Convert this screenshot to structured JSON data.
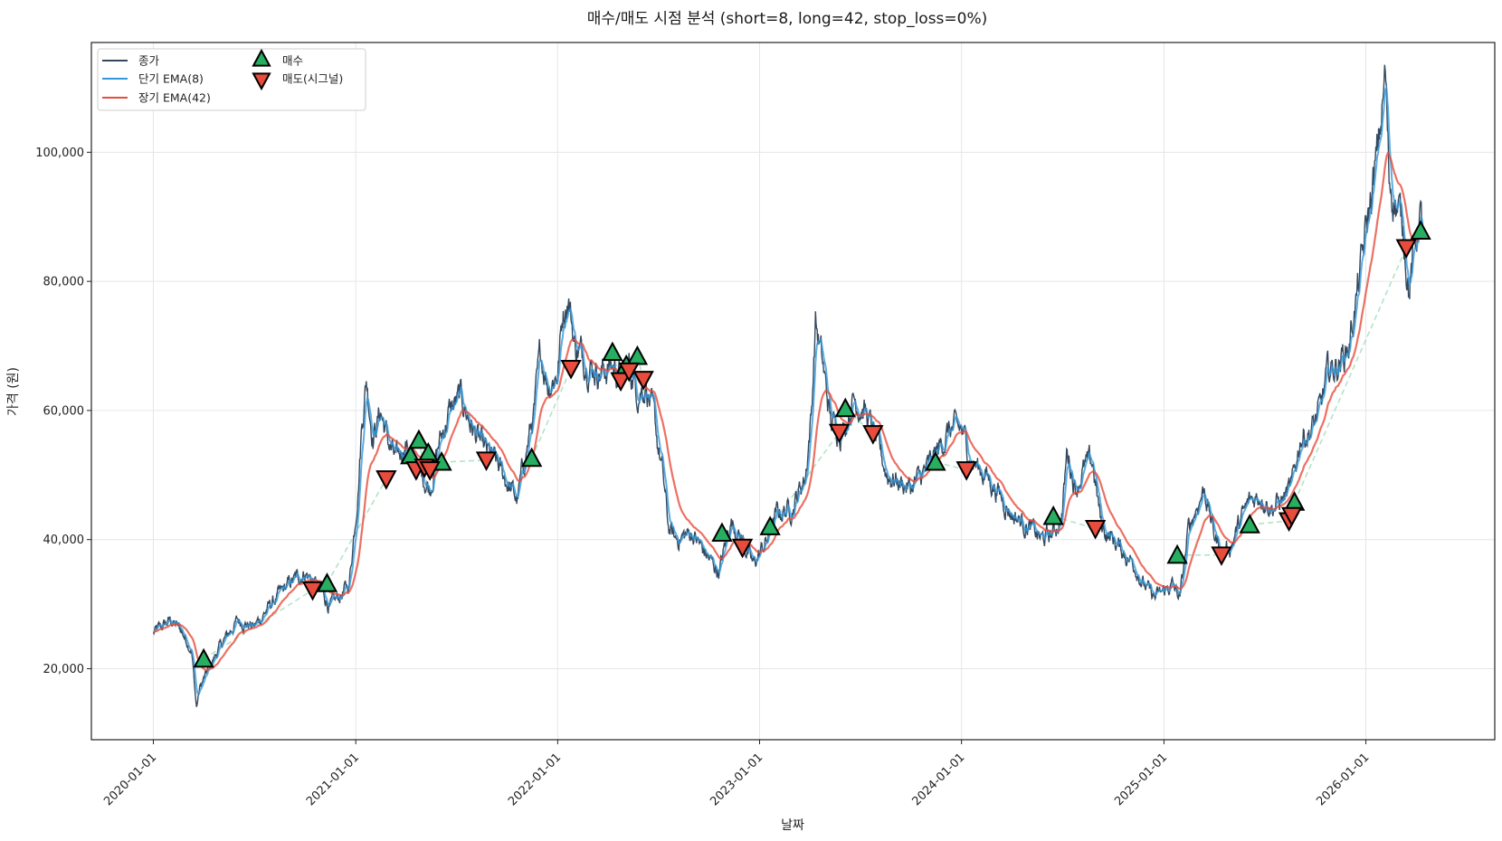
{
  "chart_data": {
    "type": "line",
    "title": "매수/매도 시점 분석 (short=8, long=42, stop_loss=0%)",
    "xlabel": "날짜",
    "ylabel": "가격 (원)",
    "xlim": [
      "2019-09-11",
      "2026-08-22"
    ],
    "ylim": [
      9000,
      117000
    ],
    "x_ticks": [
      "2020-01-01",
      "2021-01-01",
      "2022-01-01",
      "2023-01-01",
      "2024-01-01",
      "2025-01-01",
      "2026-01-01"
    ],
    "y_ticks": [
      20000,
      40000,
      60000,
      80000,
      100000
    ],
    "y_tick_labels": [
      "20,000",
      "40,000",
      "60,000",
      "80,000",
      "100,000"
    ],
    "grid": true,
    "legend_position": "top-left",
    "legend": [
      {
        "key": "close",
        "label": "종가",
        "kind": "line",
        "color": "#34495e"
      },
      {
        "key": "ema_short",
        "label": "단기 EMA(8)",
        "kind": "line",
        "color": "#3498db"
      },
      {
        "key": "ema_long",
        "label": "장기 EMA(42)",
        "kind": "line",
        "color": "#e74c3c"
      },
      {
        "key": "buy",
        "label": "매수",
        "kind": "marker-up",
        "color": "#27ae60"
      },
      {
        "key": "sell",
        "label": "매도(시그널)",
        "kind": "marker-down",
        "color": "#e74c3c"
      }
    ],
    "close_anchors": [
      [
        "2020-01-01",
        25500
      ],
      [
        "2020-02-01",
        27500
      ],
      [
        "2020-02-20",
        26000
      ],
      [
        "2020-03-10",
        23000
      ],
      [
        "2020-03-19",
        14000
      ],
      [
        "2020-03-25",
        17000
      ],
      [
        "2020-04-10",
        20000
      ],
      [
        "2020-05-01",
        23500
      ],
      [
        "2020-06-01",
        27500
      ],
      [
        "2020-07-01",
        26500
      ],
      [
        "2020-08-01",
        30000
      ],
      [
        "2020-09-01",
        33000
      ],
      [
        "2020-10-01",
        35000
      ],
      [
        "2020-11-01",
        32000
      ],
      [
        "2020-11-15",
        29500
      ],
      [
        "2020-12-01",
        31000
      ],
      [
        "2020-12-20",
        33000
      ],
      [
        "2021-01-05",
        48000
      ],
      [
        "2021-01-12",
        58000
      ],
      [
        "2021-01-20",
        65000
      ],
      [
        "2021-02-01",
        56000
      ],
      [
        "2021-02-15",
        60000
      ],
      [
        "2021-03-01",
        55000
      ],
      [
        "2021-03-15",
        52000
      ],
      [
        "2021-04-01",
        55000
      ],
      [
        "2021-04-15",
        52000
      ],
      [
        "2021-05-01",
        50000
      ],
      [
        "2021-05-15",
        48000
      ],
      [
        "2021-06-01",
        55000
      ],
      [
        "2021-06-20",
        60000
      ],
      [
        "2021-07-10",
        62000
      ],
      [
        "2021-08-01",
        57000
      ],
      [
        "2021-08-20",
        54000
      ],
      [
        "2021-09-10",
        52000
      ],
      [
        "2021-10-01",
        49000
      ],
      [
        "2021-10-20",
        46000
      ],
      [
        "2021-11-01",
        52000
      ],
      [
        "2021-11-20",
        60000
      ],
      [
        "2021-12-01",
        69000
      ],
      [
        "2021-12-15",
        64000
      ],
      [
        "2022-01-01",
        66000
      ],
      [
        "2022-01-10",
        75000
      ],
      [
        "2022-01-20",
        78000
      ],
      [
        "2022-02-01",
        70000
      ],
      [
        "2022-03-01",
        67000
      ],
      [
        "2022-03-20",
        66000
      ],
      [
        "2022-04-10",
        67000
      ],
      [
        "2022-04-25",
        65000
      ],
      [
        "2022-05-10",
        67000
      ],
      [
        "2022-05-25",
        63000
      ],
      [
        "2022-06-10",
        64000
      ],
      [
        "2022-06-25",
        58000
      ],
      [
        "2022-07-10",
        50000
      ],
      [
        "2022-07-20",
        42000
      ],
      [
        "2022-08-01",
        40000
      ],
      [
        "2022-09-01",
        41000
      ],
      [
        "2022-10-01",
        37000
      ],
      [
        "2022-10-20",
        35000
      ],
      [
        "2022-11-10",
        43000
      ],
      [
        "2022-12-01",
        40000
      ],
      [
        "2022-12-20",
        36000
      ],
      [
        "2023-01-15",
        40000
      ],
      [
        "2023-02-01",
        44000
      ],
      [
        "2023-03-01",
        45000
      ],
      [
        "2023-03-25",
        50000
      ],
      [
        "2023-04-05",
        60000
      ],
      [
        "2023-04-12",
        74000
      ],
      [
        "2023-04-25",
        67000
      ],
      [
        "2023-05-10",
        58000
      ],
      [
        "2023-06-01",
        57000
      ],
      [
        "2023-06-20",
        62000
      ],
      [
        "2023-07-10",
        60000
      ],
      [
        "2023-08-01",
        55000
      ],
      [
        "2023-08-20",
        50000
      ],
      [
        "2023-09-10",
        49000
      ],
      [
        "2023-10-01",
        48000
      ],
      [
        "2023-11-01",
        51000
      ],
      [
        "2023-11-20",
        54000
      ],
      [
        "2023-12-10",
        57000
      ],
      [
        "2024-01-01",
        57000
      ],
      [
        "2024-01-20",
        52000
      ],
      [
        "2024-02-15",
        50000
      ],
      [
        "2024-03-10",
        47000
      ],
      [
        "2024-04-01",
        44000
      ],
      [
        "2024-05-01",
        42000
      ],
      [
        "2024-05-25",
        40000
      ],
      [
        "2024-06-15",
        41000
      ],
      [
        "2024-07-01",
        44000
      ],
      [
        "2024-07-10",
        54000
      ],
      [
        "2024-07-25",
        48000
      ],
      [
        "2024-08-10",
        51000
      ],
      [
        "2024-08-25",
        52000
      ],
      [
        "2024-09-10",
        42000
      ],
      [
        "2024-10-01",
        40000
      ],
      [
        "2024-10-20",
        38000
      ],
      [
        "2024-11-10",
        36000
      ],
      [
        "2024-11-25",
        33000
      ],
      [
        "2024-12-15",
        31000
      ],
      [
        "2025-01-01",
        32000
      ],
      [
        "2025-01-15",
        33000
      ],
      [
        "2025-01-30",
        31000
      ],
      [
        "2025-02-15",
        42000
      ],
      [
        "2025-03-01",
        45000
      ],
      [
        "2025-03-15",
        48000
      ],
      [
        "2025-04-01",
        41000
      ],
      [
        "2025-04-15",
        38000
      ],
      [
        "2025-05-01",
        39000
      ],
      [
        "2025-05-20",
        43000
      ],
      [
        "2025-06-05",
        46000
      ],
      [
        "2025-06-25",
        47000
      ],
      [
        "2025-07-15",
        45000
      ],
      [
        "2025-08-01",
        46000
      ],
      [
        "2025-08-20",
        48000
      ],
      [
        "2025-09-05",
        56000
      ],
      [
        "2025-09-25",
        57000
      ],
      [
        "2025-10-10",
        60000
      ],
      [
        "2025-10-25",
        66000
      ],
      [
        "2025-11-10",
        67000
      ],
      [
        "2025-12-01",
        70000
      ],
      [
        "2025-12-20",
        80000
      ],
      [
        "2026-01-05",
        90000
      ],
      [
        "2026-01-20",
        98000
      ],
      [
        "2026-02-01",
        108000
      ],
      [
        "2026-02-05",
        112000
      ],
      [
        "2026-02-12",
        96000
      ],
      [
        "2026-02-25",
        92000
      ],
      [
        "2026-03-10",
        88000
      ],
      [
        "2026-03-20",
        79000
      ],
      [
        "2026-04-01",
        86000
      ],
      [
        "2026-04-08",
        91000
      ],
      [
        "2026-04-14",
        87000
      ]
    ],
    "buy_signals": [
      {
        "date": "2020-04-01",
        "price": 21500
      },
      {
        "date": "2020-11-10",
        "price": 33200
      },
      {
        "date": "2021-04-10",
        "price": 53000
      },
      {
        "date": "2021-04-25",
        "price": 55400
      },
      {
        "date": "2021-05-12",
        "price": 53400
      },
      {
        "date": "2021-06-05",
        "price": 52000
      },
      {
        "date": "2021-11-15",
        "price": 52600
      },
      {
        "date": "2022-04-10",
        "price": 69000
      },
      {
        "date": "2022-05-05",
        "price": 67000
      },
      {
        "date": "2022-05-25",
        "price": 68400
      },
      {
        "date": "2022-10-25",
        "price": 41000
      },
      {
        "date": "2023-01-20",
        "price": 42000
      },
      {
        "date": "2023-06-05",
        "price": 60300
      },
      {
        "date": "2023-11-15",
        "price": 52000
      },
      {
        "date": "2024-06-15",
        "price": 43600
      },
      {
        "date": "2025-01-25",
        "price": 37600
      },
      {
        "date": "2025-06-05",
        "price": 42300
      },
      {
        "date": "2025-08-25",
        "price": 45800
      },
      {
        "date": "2026-04-10",
        "price": 87800
      }
    ],
    "sell_signals": [
      {
        "date": "2020-10-15",
        "price": 32200
      },
      {
        "date": "2021-02-25",
        "price": 49400
      },
      {
        "date": "2021-04-20",
        "price": 50800
      },
      {
        "date": "2021-05-05",
        "price": 51200
      },
      {
        "date": "2021-05-15",
        "price": 50800
      },
      {
        "date": "2021-08-25",
        "price": 52300
      },
      {
        "date": "2022-01-25",
        "price": 66500
      },
      {
        "date": "2022-04-25",
        "price": 64600
      },
      {
        "date": "2022-05-10",
        "price": 66100
      },
      {
        "date": "2022-06-05",
        "price": 64800
      },
      {
        "date": "2022-12-01",
        "price": 38800
      },
      {
        "date": "2023-05-25",
        "price": 56600
      },
      {
        "date": "2023-07-25",
        "price": 56400
      },
      {
        "date": "2024-01-10",
        "price": 50800
      },
      {
        "date": "2024-08-30",
        "price": 41700
      },
      {
        "date": "2025-04-15",
        "price": 37600
      },
      {
        "date": "2025-08-15",
        "price": 42900
      },
      {
        "date": "2025-08-20",
        "price": 43700
      },
      {
        "date": "2026-03-15",
        "price": 85200
      }
    ]
  }
}
